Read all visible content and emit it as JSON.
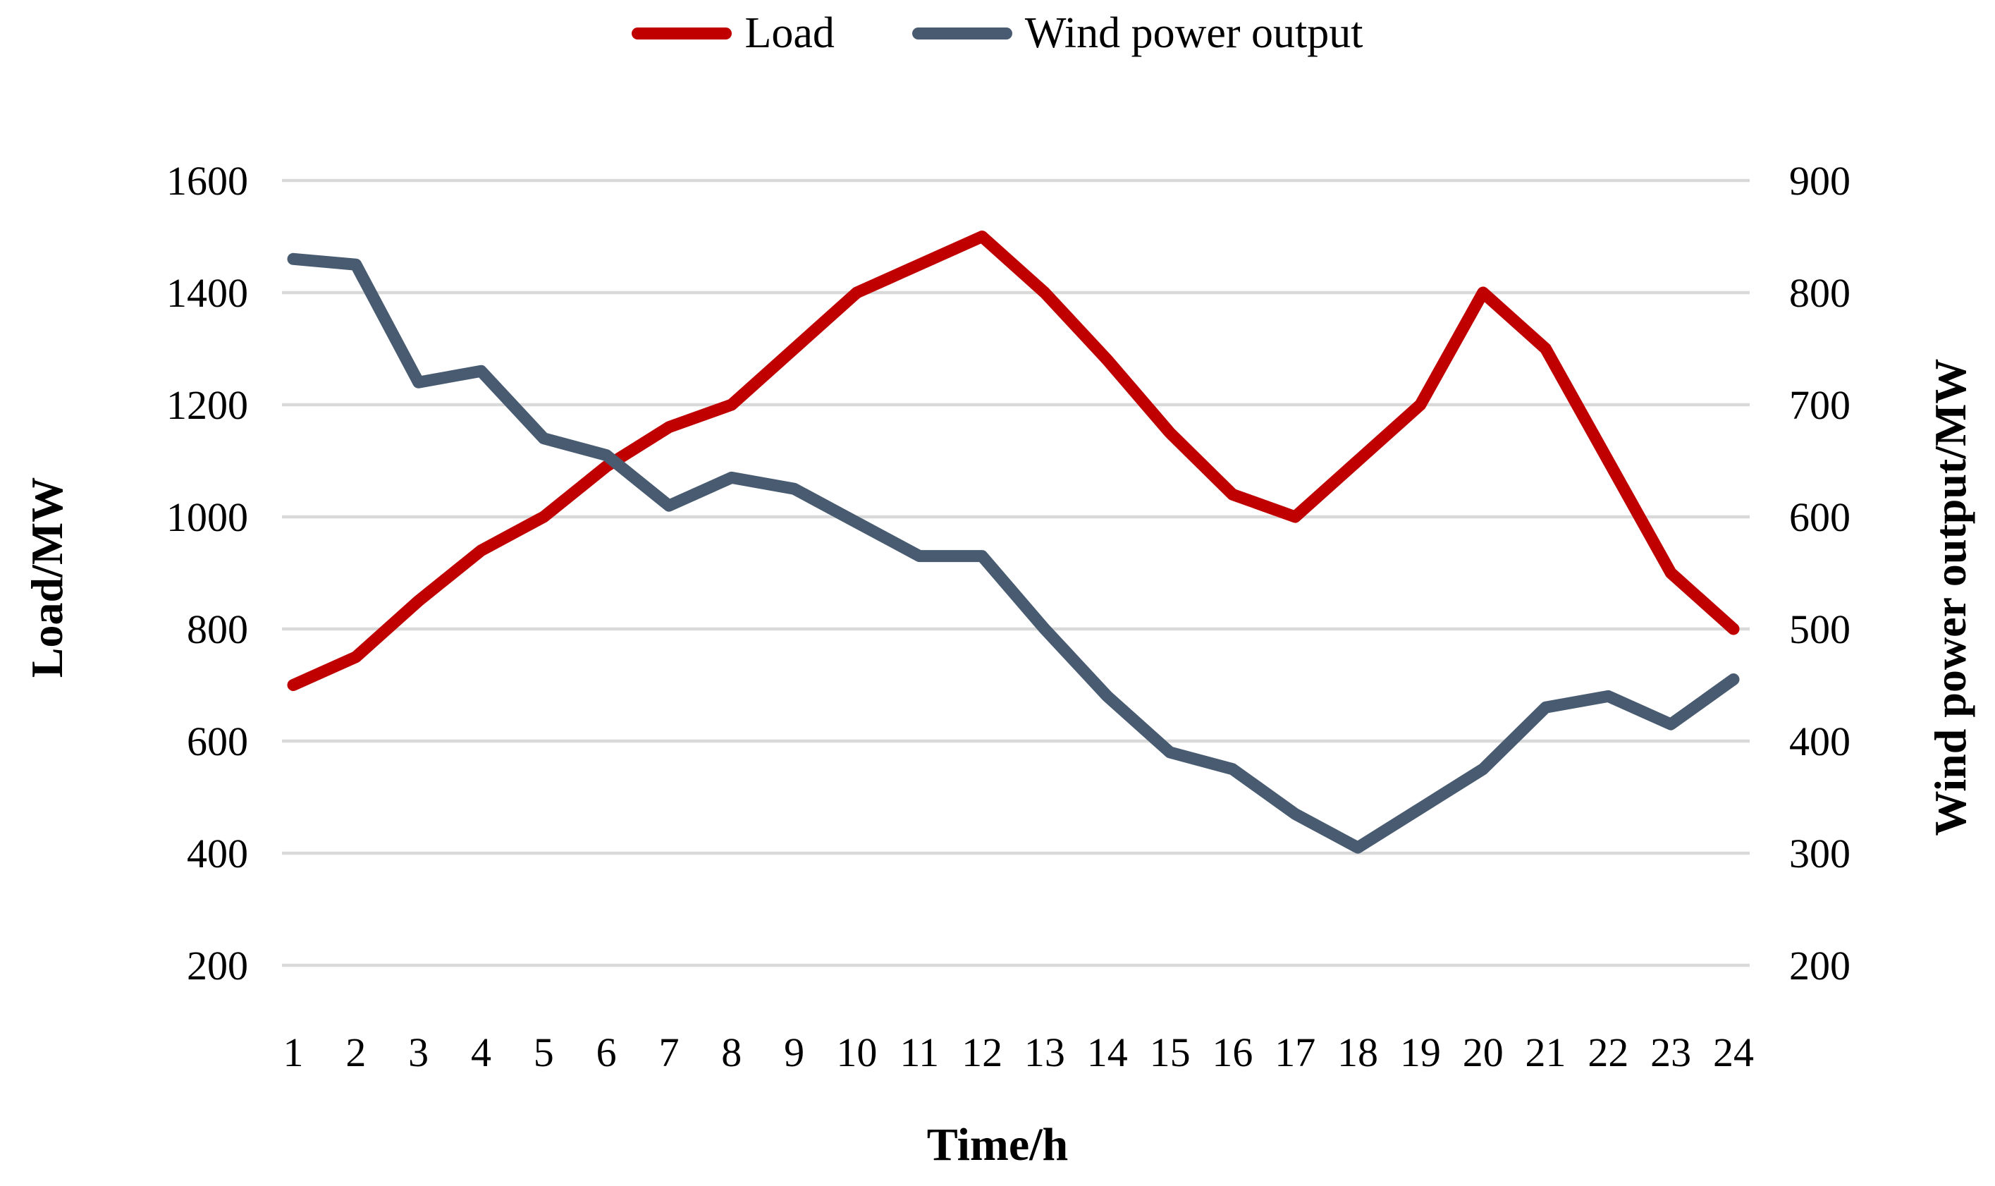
{
  "chart_data": {
    "type": "line",
    "title": "",
    "x_axis": {
      "label": "Time/h",
      "ticks": [
        1,
        2,
        3,
        4,
        5,
        6,
        7,
        8,
        9,
        10,
        11,
        12,
        13,
        14,
        15,
        16,
        17,
        18,
        19,
        20,
        21,
        22,
        23,
        24
      ]
    },
    "left_axis": {
      "label": "Load/MW",
      "min": 200,
      "max": 1600,
      "ticks": [
        1600,
        1400,
        1200,
        1000,
        800,
        600,
        400,
        200
      ]
    },
    "right_axis": {
      "label": "Wind power output/MW",
      "min": 200,
      "max": 900,
      "ticks": [
        900,
        800,
        700,
        600,
        500,
        400,
        300,
        200
      ]
    },
    "grid": true,
    "legend_position": "top",
    "colors": {
      "load": "#C00000",
      "wind": "#485B70",
      "gridline": "#D9D9D9",
      "text": "#000000"
    },
    "series": [
      {
        "name": "Load",
        "axis": "left",
        "color": "#C00000",
        "values": [
          700,
          750,
          850,
          940,
          1000,
          1090,
          1160,
          1200,
          1300,
          1400,
          1450,
          1500,
          1400,
          1280,
          1150,
          1040,
          1000,
          1100,
          1200,
          1400,
          1300,
          1100,
          900,
          800
        ]
      },
      {
        "name": "Wind power output",
        "axis": "right",
        "color": "#485B70",
        "values": [
          830,
          825,
          720,
          730,
          670,
          655,
          610,
          635,
          625,
          595,
          565,
          565,
          500,
          440,
          390,
          375,
          335,
          305,
          340,
          375,
          430,
          440,
          415,
          455
        ]
      }
    ]
  },
  "legend": {
    "load_label": "Load",
    "wind_label": "Wind power output"
  }
}
